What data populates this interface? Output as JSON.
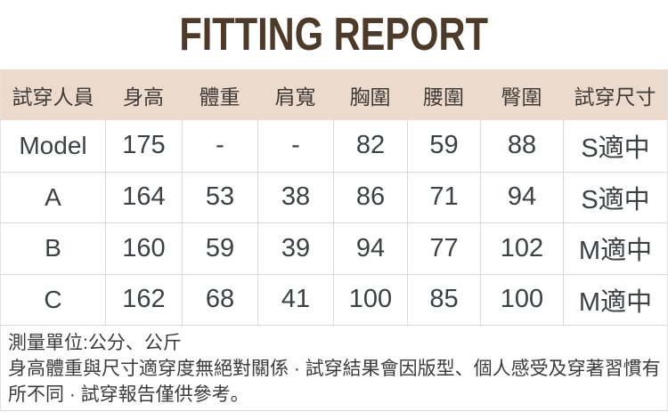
{
  "title": "FITTING REPORT",
  "colors": {
    "title_text": "#4e3a29",
    "header_bg": "#ecdbcc",
    "body_text": "#3d4045",
    "grid_border": "#d9d9d9",
    "page_bg": "#ffffff"
  },
  "table": {
    "headers": [
      "試穿人員",
      "身高",
      "體重",
      "肩寬",
      "胸圍",
      "腰圍",
      "臀圍",
      "試穿尺寸"
    ],
    "rows": [
      [
        "Model",
        "175",
        "-",
        "-",
        "82",
        "59",
        "88",
        "S適中"
      ],
      [
        "A",
        "164",
        "53",
        "38",
        "86",
        "71",
        "94",
        "S適中"
      ],
      [
        "B",
        "160",
        "59",
        "39",
        "94",
        "77",
        "102",
        "M適中"
      ],
      [
        "C",
        "162",
        "68",
        "41",
        "100",
        "85",
        "100",
        "M適中"
      ]
    ]
  },
  "footnotes": {
    "units": "測量單位:公分、公斤",
    "disclaimer": "身高體重與尺寸適穿度無絕對關係 · 試穿結果會因版型、個人感受及穿著習慣有所不同 · 試穿報告僅供參考。"
  }
}
